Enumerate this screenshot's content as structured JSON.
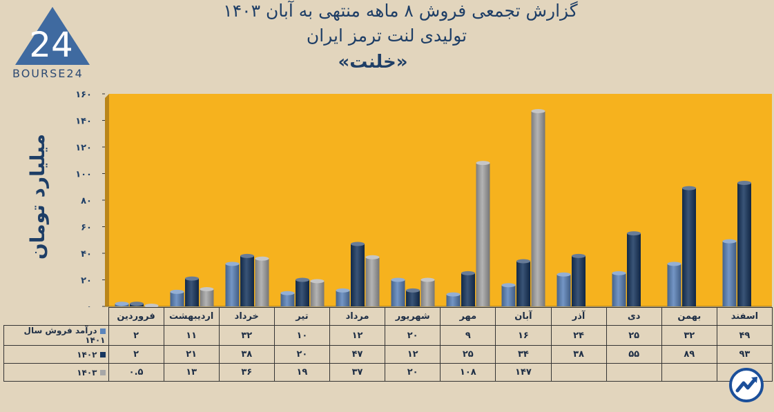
{
  "title": {
    "line1": "گزارش تجمعی فروش ۸ ماهه منتهی به آبان ۱۴۰۳",
    "line2": "تولیدی لنت ترمز ایران",
    "line3": "«خلنت»"
  },
  "logo": {
    "text": "BOURSE24",
    "mark": "24"
  },
  "colors": {
    "background": "#e2d5bd",
    "plot": "#f6b21e",
    "s1401": "#5b84bb",
    "s1402": "#17365f",
    "s1403": "#a7a7a7"
  },
  "chart_data": {
    "type": "bar",
    "ylabel": "میلیارد تومان",
    "ylim": [
      0,
      160
    ],
    "yticks": [
      "۰",
      "۲۰",
      "۴۰",
      "۶۰",
      "۸۰",
      "۱۰۰",
      "۱۲۰",
      "۱۴۰",
      "۱۶۰"
    ],
    "yticks_values": [
      0,
      20,
      40,
      60,
      80,
      100,
      120,
      140,
      160
    ],
    "grid": false,
    "categories": [
      "فروردین",
      "اردیبهشت",
      "خرداد",
      "تیر",
      "مرداد",
      "شهریور",
      "مهر",
      "آبان",
      "آذر",
      "دی",
      "بهمن",
      "اسفند"
    ],
    "series": [
      {
        "name": "درآمد فروش سال ۱۴۰۱",
        "values": [
          2,
          11,
          32,
          10,
          12,
          20,
          9,
          16,
          24,
          25,
          32,
          49
        ],
        "labels": [
          "۲",
          "۱۱",
          "۳۲",
          "۱۰",
          "۱۲",
          "۲۰",
          "۹",
          "۱۶",
          "۲۴",
          "۲۵",
          "۳۲",
          "۴۹"
        ]
      },
      {
        "name": "۱۴۰۲",
        "values": [
          2,
          21,
          38,
          20,
          47,
          12,
          25,
          34,
          38,
          55,
          89,
          93
        ],
        "labels": [
          "۲",
          "۲۱",
          "۳۸",
          "۲۰",
          "۴۷",
          "۱۲",
          "۲۵",
          "۳۴",
          "۳۸",
          "۵۵",
          "۸۹",
          "۹۳"
        ]
      },
      {
        "name": "۱۴۰۳",
        "values": [
          0.5,
          13,
          36,
          19,
          37,
          20,
          108,
          147,
          null,
          null,
          null,
          null
        ],
        "labels": [
          "۰.۵",
          "۱۳",
          "۳۶",
          "۱۹",
          "۳۷",
          "۲۰",
          "۱۰۸",
          "۱۴۷",
          "",
          "",
          "",
          ""
        ]
      }
    ]
  },
  "badge": {
    "icon": "trend-arrow-icon"
  }
}
